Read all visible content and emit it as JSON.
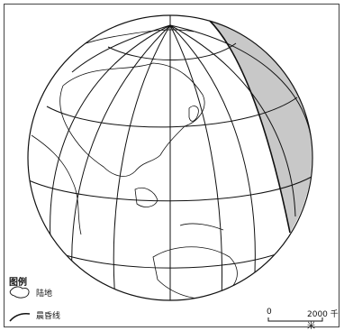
{
  "legend": {
    "title": "图例",
    "items": [
      {
        "label": "陆地",
        "icon": "land-outline-icon"
      },
      {
        "label": "晨昏线",
        "icon": "terminator-line-icon"
      }
    ]
  },
  "scale": {
    "zero": "0",
    "distance": "2000 千米"
  },
  "colors": {
    "night_shading": "#c8c8c8",
    "line": "#111111"
  }
}
